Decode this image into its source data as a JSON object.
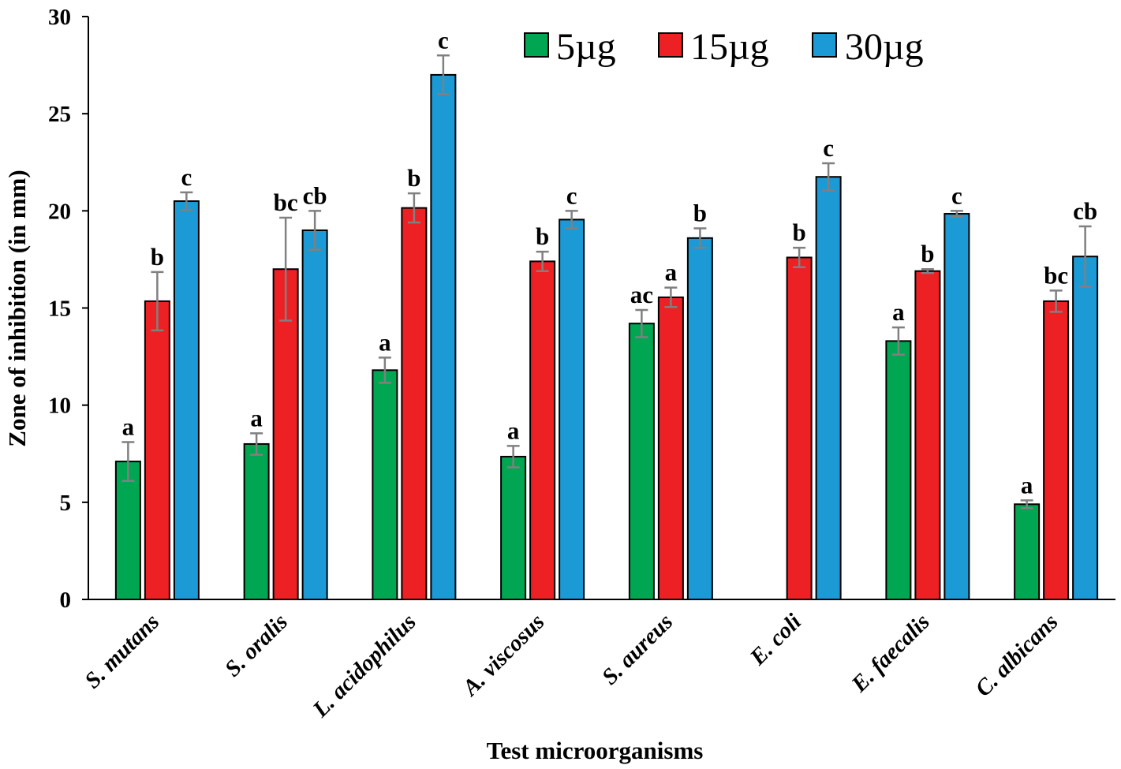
{
  "chart_data": {
    "type": "bar",
    "title": "",
    "xlabel": "Test microorganisms",
    "ylabel": "Zone of inhibition (in mm)",
    "ylim": [
      0,
      30
    ],
    "yticks": [
      0,
      5,
      10,
      15,
      20,
      25,
      30
    ],
    "grid": false,
    "legend_position": "top-right",
    "categories": [
      "S. mutans",
      "S. oralis",
      "L. acidophilus",
      "A. viscosus",
      "S. aureus",
      "E. coli",
      "E. faecalis",
      "C. albicans"
    ],
    "series": [
      {
        "name": "5µg",
        "color": "#00A651",
        "values": [
          7.1,
          8.0,
          11.8,
          7.35,
          14.2,
          0,
          13.3,
          4.9
        ],
        "errors": [
          1.0,
          0.55,
          0.65,
          0.55,
          0.7,
          0,
          0.7,
          0.2
        ],
        "labels": [
          "a",
          "a",
          "a",
          "a",
          "ac",
          "",
          "a",
          "a"
        ]
      },
      {
        "name": "15µg",
        "color": "#ED2024",
        "values": [
          15.35,
          17.0,
          20.15,
          17.4,
          15.55,
          17.6,
          16.9,
          15.35
        ],
        "errors": [
          1.5,
          2.65,
          0.75,
          0.5,
          0.5,
          0.5,
          0.1,
          0.55
        ],
        "labels": [
          "b",
          "bc",
          "b",
          "b",
          "a",
          "b",
          "b",
          "bc"
        ]
      },
      {
        "name": "30µg",
        "color": "#1B9AD6",
        "values": [
          20.5,
          19.0,
          27.0,
          19.55,
          18.6,
          21.75,
          19.85,
          17.65
        ],
        "errors": [
          0.45,
          1.0,
          1.0,
          0.45,
          0.5,
          0.7,
          0.15,
          1.55
        ],
        "labels": [
          "c",
          "cb",
          "c",
          "c",
          "b",
          "c",
          "c",
          "cb"
        ]
      }
    ]
  }
}
